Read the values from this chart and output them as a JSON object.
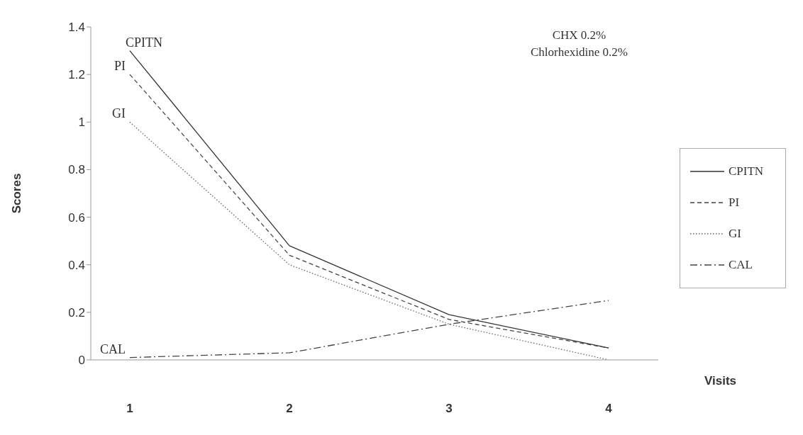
{
  "chart_data": {
    "type": "line",
    "xlabel": "Visits",
    "ylabel": "Scores",
    "categories": [
      "1",
      "2",
      "3",
      "4"
    ],
    "series": [
      {
        "name": "CPITN",
        "color": "#333333",
        "line_style": "solid",
        "values": [
          1.3,
          0.48,
          0.19,
          0.05
        ]
      },
      {
        "name": "PI",
        "color": "#444444",
        "line_style": "dashed",
        "values": [
          1.2,
          0.44,
          0.17,
          0.05
        ]
      },
      {
        "name": "GI",
        "color": "#666666",
        "line_style": "dotted",
        "values": [
          1.0,
          0.4,
          0.15,
          0.0
        ]
      },
      {
        "name": "CAL",
        "color": "#444444",
        "line_style": "dashdot",
        "values": [
          0.01,
          0.03,
          0.15,
          0.25
        ]
      }
    ],
    "ylim": [
      0,
      1.4
    ],
    "yticks": [
      0,
      0.2,
      0.4,
      0.6,
      0.8,
      1,
      1.2,
      1.4
    ],
    "annotations": [
      "CHX 0.2%",
      "Chlorhexidine 0.2%"
    ],
    "grid": false,
    "legend": "right",
    "marker": "none"
  }
}
